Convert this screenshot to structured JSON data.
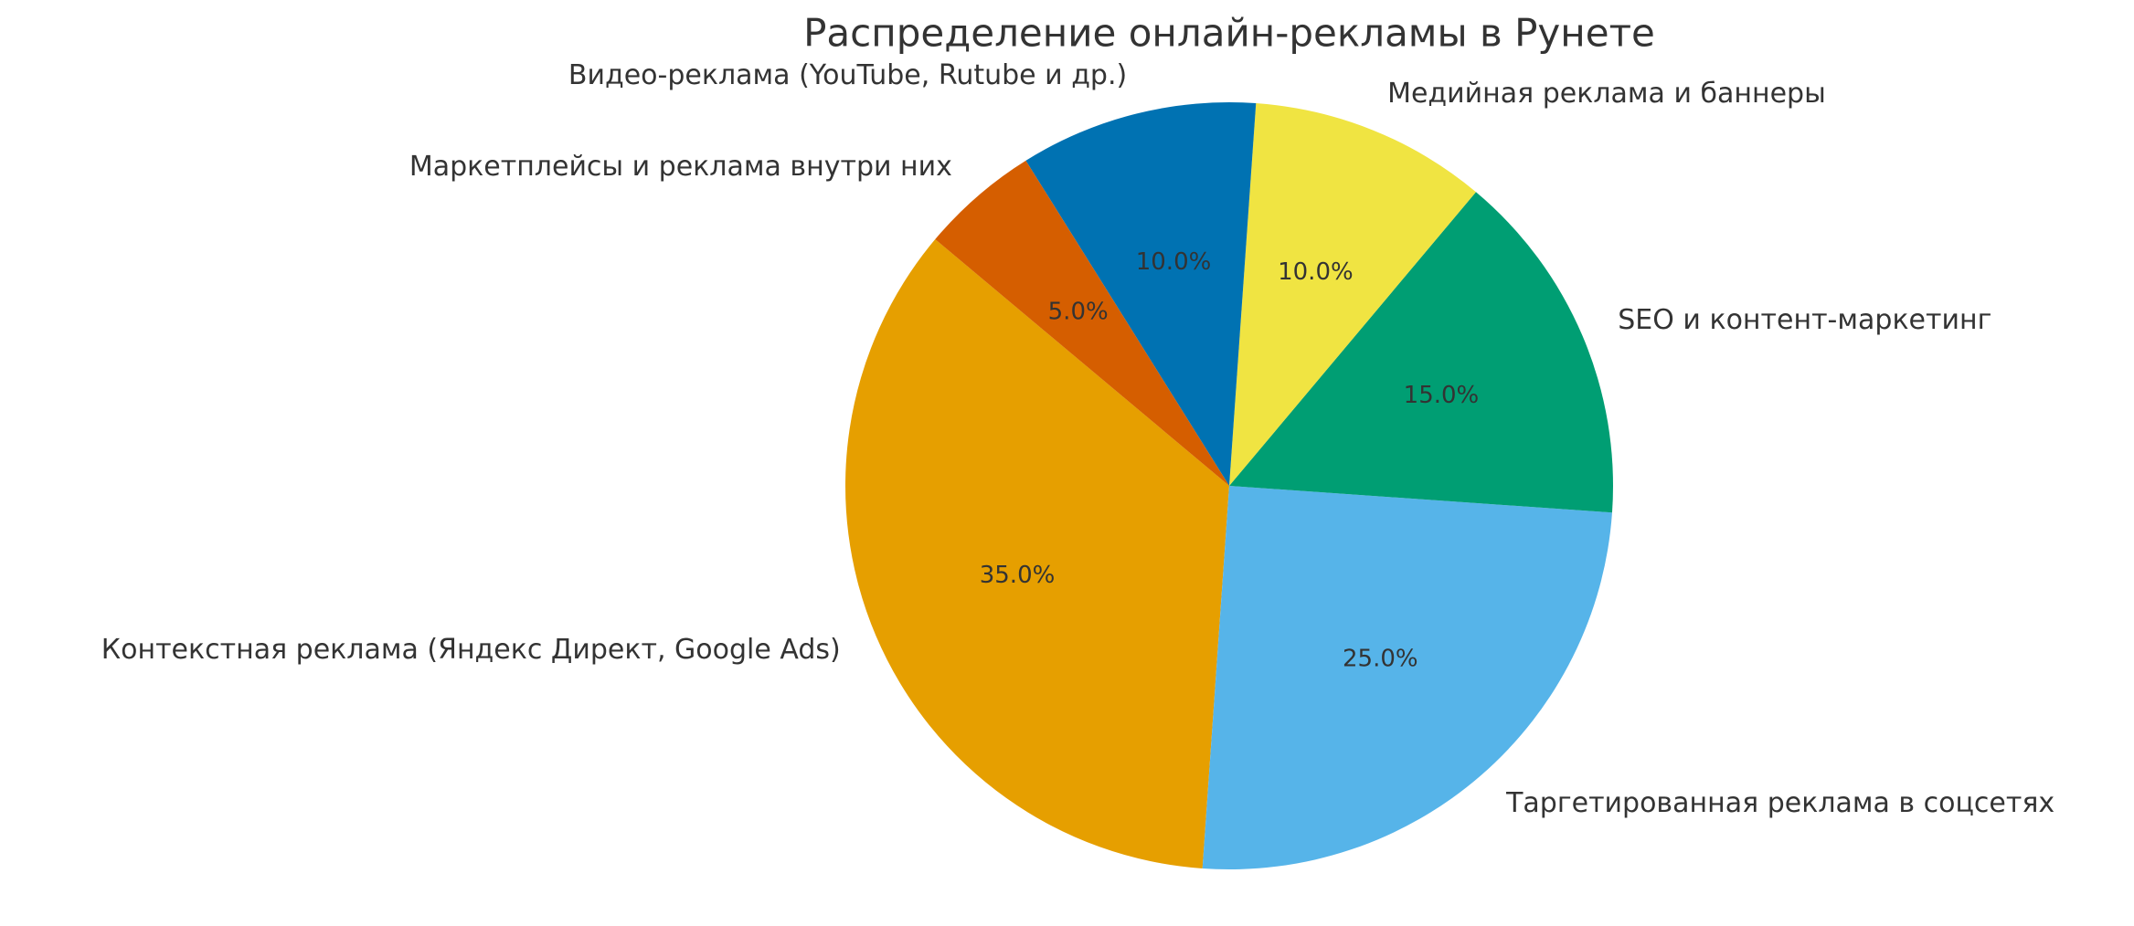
{
  "chart_data": {
    "type": "pie",
    "title": "Распределение онлайн-рекламы в Рунете",
    "categories": [
      "Контекстная реклама (Яндекс Директ, Google Ads)",
      "Таргетированная реклама в соцсетях",
      "SEO и контент-маркетинг",
      "Медийная реклама и баннеры",
      "Видео-реклама (YouTube, Rutube и др.)",
      "Маркетплейсы и реклама внутри них"
    ],
    "values": [
      35,
      25,
      15,
      10,
      10,
      5
    ],
    "value_labels": [
      "35.0%",
      "25.0%",
      "15.0%",
      "10.0%",
      "10.0%",
      "5.0%"
    ],
    "colors": [
      "#E69F00",
      "#56B4E9",
      "#009E73",
      "#F0E442",
      "#0072B2",
      "#D55E00"
    ],
    "start_angle": 140
  }
}
